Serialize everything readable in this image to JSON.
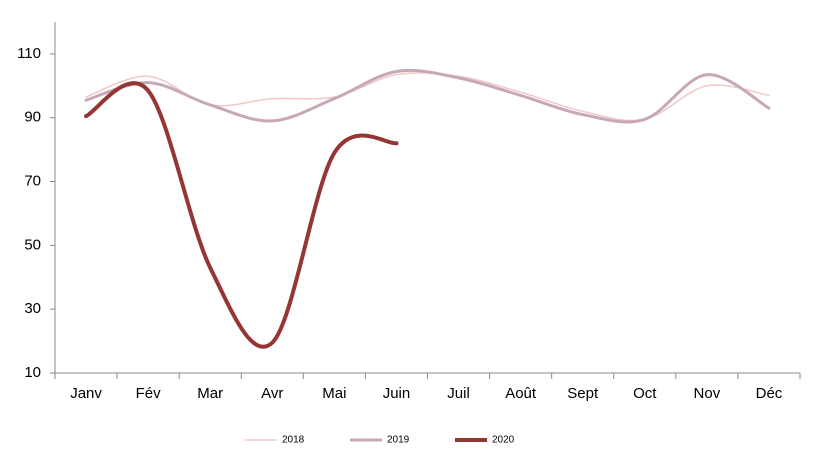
{
  "chart_data": {
    "type": "line",
    "categories": [
      "Janv",
      "Fév",
      "Mar",
      "Avr",
      "Mai",
      "Juin",
      "Juil",
      "Août",
      "Sept",
      "Oct",
      "Nov",
      "Déc"
    ],
    "series": [
      {
        "name": "2018",
        "color": "#f0c8c8",
        "values": [
          96.5,
          103,
          94,
          96,
          96.5,
          103.5,
          103,
          98,
          92,
          89.5,
          100,
          97
        ]
      },
      {
        "name": "2019",
        "color": "#c8a8b8",
        "values": [
          95.5,
          101,
          94,
          89,
          96,
          104.5,
          102.5,
          97,
          91,
          89.5,
          103.5,
          93
        ]
      },
      {
        "name": "2020",
        "color": "#943634",
        "values": [
          90.5,
          98.5,
          43,
          19.5,
          79,
          82,
          null,
          null,
          null,
          null,
          null,
          null
        ]
      }
    ],
    "ylim": [
      10,
      120
    ],
    "yticks": [
      10,
      30,
      50,
      70,
      90,
      110
    ],
    "grid": false,
    "legend": "bottom"
  }
}
